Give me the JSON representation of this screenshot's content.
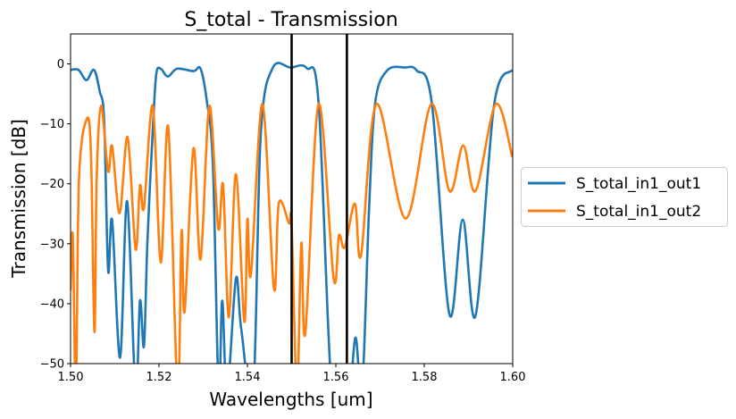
{
  "chart_data": {
    "type": "line",
    "title": "S_total - Transmission",
    "xlabel": "Wavelengths [um]",
    "ylabel": "Transmission [dB]",
    "xlim": [
      1.5,
      1.6
    ],
    "ylim": [
      -50,
      5
    ],
    "xticks": [
      1.5,
      1.52,
      1.54,
      1.56,
      1.58,
      1.6
    ],
    "xtick_labels": [
      "1.50",
      "1.52",
      "1.54",
      "1.56",
      "1.58",
      "1.60"
    ],
    "yticks": [
      0,
      -10,
      -20,
      -30,
      -40,
      -50
    ],
    "ytick_labels": [
      "0",
      "−10",
      "−20",
      "−30",
      "−40",
      "−50"
    ],
    "grid": false,
    "legend_placement": "outside-right",
    "vlines": [
      1.55,
      1.5625
    ],
    "vline_color": "#000000",
    "series": [
      {
        "name": "S_total_in1_out1",
        "color": "#1f77b4",
        "x": [
          1.5,
          1.5018,
          1.5036,
          1.5053,
          1.5066,
          1.5076,
          1.5085,
          1.5094,
          1.5112,
          1.5128,
          1.5147,
          1.5157,
          1.5166,
          1.5174,
          1.5187,
          1.5194,
          1.5204,
          1.522,
          1.5241,
          1.5278,
          1.5294,
          1.5308,
          1.5322,
          1.5335,
          1.5343,
          1.5354,
          1.5374,
          1.5386,
          1.5413,
          1.543,
          1.5457,
          1.5497,
          1.5534,
          1.5561,
          1.5591,
          1.5625,
          1.5644,
          1.5659,
          1.5675,
          1.5689,
          1.5716,
          1.5756,
          1.5783,
          1.5817,
          1.5857,
          1.5887,
          1.5916,
          1.5958,
          1.5999
        ],
        "y": [
          -1.0,
          -1.0,
          -2.7,
          -1.0,
          -4.6,
          -9.5,
          -34.5,
          -26.1,
          -49.0,
          -22.9,
          -55,
          -39.5,
          -47.1,
          -29.3,
          -9.5,
          -1.6,
          -0.8,
          -2.1,
          -0.8,
          -1.2,
          -0.8,
          -6.1,
          -17.0,
          -55,
          -39.5,
          -55,
          -35.8,
          -44.2,
          -55,
          -12.0,
          -0.7,
          -0.6,
          -0.7,
          -6.5,
          -55,
          -60,
          -45.7,
          -55,
          -24.4,
          -6.5,
          -1.1,
          -0.6,
          -1.1,
          -6.5,
          -41.8,
          -26.0,
          -42.0,
          -6.8,
          -1.0
        ]
      },
      {
        "name": "S_total_in1_out2",
        "color": "#ff7f0e",
        "x": [
          1.5,
          1.5005,
          1.5012,
          1.5019,
          1.5036,
          1.5046,
          1.5054,
          1.5059,
          1.5069,
          1.5085,
          1.5094,
          1.5111,
          1.5129,
          1.5147,
          1.5157,
          1.5166,
          1.5186,
          1.5204,
          1.5221,
          1.5242,
          1.5251,
          1.5258,
          1.5278,
          1.5294,
          1.5314,
          1.5334,
          1.5345,
          1.5358,
          1.5374,
          1.5393,
          1.54,
          1.5408,
          1.5434,
          1.546,
          1.5471,
          1.5494,
          1.55,
          1.5512,
          1.5522,
          1.5531,
          1.5561,
          1.5595,
          1.5607,
          1.562,
          1.5643,
          1.5657,
          1.5692,
          1.5758,
          1.5816,
          1.5857,
          1.5888,
          1.5916,
          1.5962,
          1.5999
        ],
        "y": [
          -37.8,
          -28.6,
          -55,
          -19.4,
          -9.3,
          -14.5,
          -44.7,
          -19.4,
          -7.0,
          -17.9,
          -13.7,
          -24.9,
          -12.2,
          -30.9,
          -20.3,
          -24.0,
          -7.0,
          -33.1,
          -10.6,
          -55,
          -27.9,
          -41.3,
          -14.1,
          -32.6,
          -7.0,
          -27.4,
          -20.2,
          -42.3,
          -18.4,
          -43.0,
          -25.9,
          -35.1,
          -6.7,
          -37.5,
          -23.2,
          -26.6,
          -26.8,
          -55,
          -29.9,
          -44.9,
          -6.7,
          -35.8,
          -28.6,
          -30.6,
          -23.3,
          -31.9,
          -6.7,
          -25.8,
          -6.7,
          -21.2,
          -13.6,
          -21.2,
          -6.7,
          -15.5
        ]
      }
    ]
  }
}
